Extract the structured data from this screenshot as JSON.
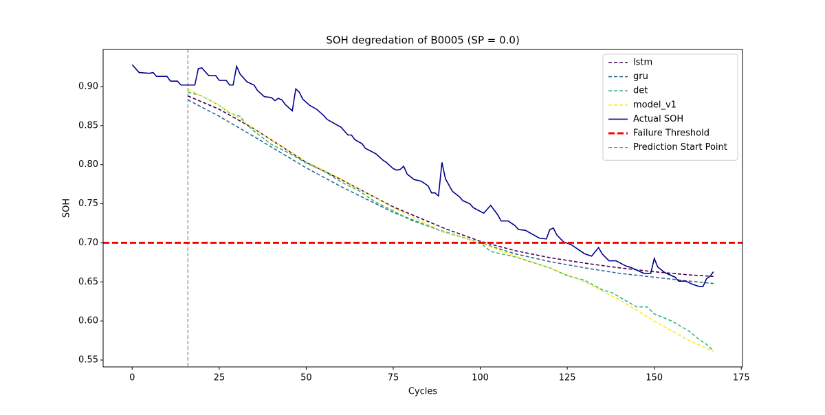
{
  "chart_data": {
    "type": "line",
    "title": "SOH degredation of B0005 (SP = 0.0)",
    "x_label": "Cycles",
    "y_label": "SOH",
    "xlim": [
      -8.35,
      175.35
    ],
    "ylim": [
      0.5412,
      0.9475
    ],
    "xticks": [
      0,
      25,
      50,
      75,
      100,
      125,
      150,
      175
    ],
    "yticks": [
      {
        "value": 0.55,
        "label": "0.55"
      },
      {
        "value": 0.6,
        "label": "0.60"
      },
      {
        "value": 0.65,
        "label": "0.65"
      },
      {
        "value": 0.7,
        "label": "0.70"
      },
      {
        "value": 0.75,
        "label": "0.75"
      },
      {
        "value": 0.8,
        "label": "0.80"
      },
      {
        "value": 0.85,
        "label": "0.85"
      },
      {
        "value": 0.9,
        "label": "0.90"
      }
    ],
    "legend": "upper right",
    "series": [
      {
        "name": "lstm",
        "color": "#440154",
        "linestyle": "dashed",
        "x": [
          16,
          25,
          35,
          50,
          60,
          75,
          90,
          100,
          110,
          120,
          130,
          140,
          150,
          160,
          167
        ],
        "values": [
          0.888,
          0.871,
          0.846,
          0.803,
          0.781,
          0.746,
          0.718,
          0.702,
          0.69,
          0.681,
          0.674,
          0.668,
          0.663,
          0.659,
          0.657
        ]
      },
      {
        "name": "gru",
        "color": "#31688e",
        "linestyle": "dashed",
        "x": [
          16,
          25,
          35,
          50,
          60,
          75,
          90,
          100,
          110,
          120,
          130,
          140,
          150,
          160,
          167
        ],
        "values": [
          0.883,
          0.862,
          0.836,
          0.796,
          0.772,
          0.739,
          0.713,
          0.7,
          0.686,
          0.676,
          0.668,
          0.661,
          0.656,
          0.651,
          0.648
        ]
      },
      {
        "name": "det",
        "color": "#35b779",
        "linestyle": "dashed",
        "x": [
          16,
          20,
          25,
          28,
          30,
          31,
          33,
          35,
          40,
          45,
          50,
          55,
          60,
          65,
          70,
          75,
          80,
          90,
          100,
          103,
          110,
          115,
          120,
          125,
          130,
          135,
          138,
          141,
          145,
          148,
          150,
          155,
          160,
          163,
          165,
          167
        ],
        "values": [
          0.893,
          0.888,
          0.876,
          0.866,
          0.863,
          0.862,
          0.851,
          0.843,
          0.826,
          0.815,
          0.802,
          0.792,
          0.778,
          0.767,
          0.752,
          0.741,
          0.729,
          0.714,
          0.7,
          0.689,
          0.682,
          0.675,
          0.668,
          0.658,
          0.652,
          0.64,
          0.636,
          0.628,
          0.618,
          0.618,
          0.609,
          0.6,
          0.587,
          0.576,
          0.57,
          0.562
        ]
      },
      {
        "name": "model_v1",
        "color": "#fde725",
        "linestyle": "dashed",
        "x": [
          16,
          25,
          35,
          50,
          60,
          75,
          90,
          100,
          110,
          120,
          130,
          140,
          150,
          160,
          167
        ],
        "values": [
          0.897,
          0.876,
          0.846,
          0.804,
          0.782,
          0.745,
          0.713,
          0.7,
          0.683,
          0.668,
          0.65,
          0.627,
          0.6,
          0.575,
          0.561
        ]
      },
      {
        "name": "Actual SOH",
        "color": "#00008b",
        "linestyle": "solid",
        "x": [
          0,
          2,
          5,
          6,
          7,
          10,
          11,
          13,
          14,
          18,
          19,
          20,
          22,
          24,
          25,
          27,
          28,
          29,
          30,
          31,
          33,
          35,
          36,
          38,
          40,
          41,
          42,
          43,
          44,
          46,
          47,
          48,
          49,
          51,
          53,
          55,
          56,
          60,
          62,
          63,
          64,
          66,
          67,
          70,
          72,
          73,
          75,
          76,
          77,
          78,
          79,
          81,
          83,
          85,
          86,
          87,
          88,
          89,
          90,
          92,
          94,
          95,
          97,
          98,
          101,
          103,
          105,
          106,
          108,
          110,
          111,
          113,
          117,
          119,
          120,
          121,
          122,
          124,
          126,
          130,
          132,
          134,
          135,
          137,
          139,
          142,
          143,
          147,
          149,
          150,
          151,
          153,
          156,
          157,
          159,
          160,
          161,
          163,
          164,
          165,
          166,
          167
        ],
        "values": [
          0.928,
          0.918,
          0.917,
          0.918,
          0.913,
          0.913,
          0.907,
          0.907,
          0.902,
          0.902,
          0.923,
          0.924,
          0.914,
          0.914,
          0.908,
          0.908,
          0.902,
          0.902,
          0.926,
          0.916,
          0.906,
          0.902,
          0.895,
          0.887,
          0.886,
          0.882,
          0.885,
          0.883,
          0.877,
          0.869,
          0.897,
          0.893,
          0.884,
          0.876,
          0.871,
          0.863,
          0.858,
          0.848,
          0.838,
          0.838,
          0.832,
          0.827,
          0.821,
          0.814,
          0.806,
          0.803,
          0.795,
          0.793,
          0.794,
          0.798,
          0.788,
          0.781,
          0.779,
          0.773,
          0.764,
          0.764,
          0.76,
          0.803,
          0.782,
          0.766,
          0.759,
          0.754,
          0.75,
          0.745,
          0.738,
          0.748,
          0.736,
          0.728,
          0.728,
          0.722,
          0.717,
          0.716,
          0.706,
          0.705,
          0.717,
          0.719,
          0.71,
          0.701,
          0.698,
          0.686,
          0.683,
          0.694,
          0.686,
          0.677,
          0.677,
          0.67,
          0.669,
          0.661,
          0.661,
          0.68,
          0.669,
          0.662,
          0.656,
          0.651,
          0.651,
          0.649,
          0.647,
          0.644,
          0.644,
          0.654,
          0.657,
          0.663
        ]
      }
    ],
    "hlines": [
      {
        "name": "Failure Threshold",
        "value": 0.7,
        "color": "#ff0000",
        "linestyle": "dashed"
      }
    ],
    "vlines": [
      {
        "name": "Prediction Start Point",
        "value": 16,
        "color": "#808080",
        "linestyle": "dashed"
      }
    ]
  }
}
